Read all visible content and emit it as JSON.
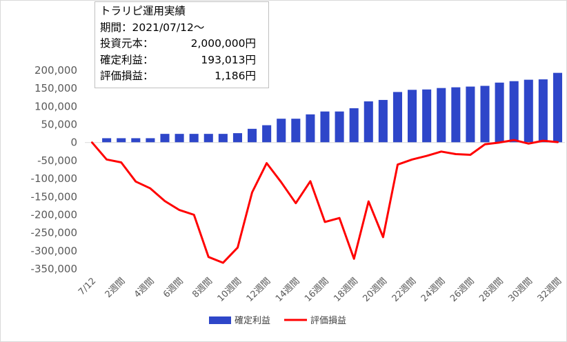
{
  "info_box": {
    "title": "トラリピ運用実績",
    "period": "期間：2021/07/12～",
    "capital_label": "投資元本：",
    "capital_value": "2,000,000円",
    "profit_label": "確定利益：",
    "profit_value": "193,013円",
    "unrealized_label": "評価損益：",
    "unrealized_value": "1,186円"
  },
  "chart_data": {
    "type": "bar",
    "categories": [
      "7/12",
      "1週間",
      "2週間",
      "3週間",
      "4週間",
      "5週間",
      "6週間",
      "7週間",
      "8週間",
      "9週間",
      "10週間",
      "11週間",
      "12週間",
      "13週間",
      "14週間",
      "15週間",
      "16週間",
      "17週間",
      "18週間",
      "19週間",
      "20週間",
      "21週間",
      "22週間",
      "23週間",
      "24週間",
      "25週間",
      "26週間",
      "27週間",
      "28週間",
      "29週間",
      "30週間",
      "31週間",
      "32週間"
    ],
    "x_tick_labels": [
      "7/12",
      "2週間",
      "4週間",
      "6週間",
      "8週間",
      "10週間",
      "12週間",
      "14週間",
      "16週間",
      "18週間",
      "20週間",
      "22週間",
      "24週間",
      "26週間",
      "28週間",
      "30週間",
      "32週間"
    ],
    "series": [
      {
        "name": "確定利益",
        "type": "bar",
        "color": "#2e46c9",
        "values": [
          0,
          12000,
          12000,
          12000,
          12000,
          24000,
          24000,
          24000,
          24000,
          24000,
          26000,
          38000,
          48000,
          66000,
          66000,
          78000,
          86000,
          86000,
          95000,
          114000,
          118000,
          140000,
          146000,
          147000,
          151000,
          153000,
          155000,
          157000,
          166000,
          170000,
          174000,
          175000,
          193013
        ]
      },
      {
        "name": "評価損益",
        "type": "line",
        "color": "#ff0000",
        "values": [
          0,
          -47000,
          -55000,
          -108000,
          -127000,
          -162000,
          -187000,
          -200000,
          -317000,
          -333000,
          -291000,
          -138000,
          -57000,
          -110000,
          -168000,
          -107000,
          -220000,
          -209000,
          -322000,
          -163000,
          -262000,
          -61000,
          -47000,
          -37000,
          -25000,
          -32000,
          -34000,
          -5000,
          0,
          7000,
          -3000,
          5000,
          1186
        ]
      }
    ],
    "ylim": [
      -350000,
      200000
    ],
    "y_ticks": [
      200000,
      150000,
      100000,
      50000,
      0,
      -50000,
      -100000,
      -150000,
      -200000,
      -250000,
      -300000,
      -350000
    ],
    "y_tick_labels": [
      "200,000",
      "150,000",
      "100,000",
      "50,000",
      "0",
      "-50,000",
      "-100,000",
      "-150,000",
      "-200,000",
      "-250,000",
      "-300,000",
      "-350,000"
    ],
    "grid": false,
    "legend_position": "bottom"
  }
}
